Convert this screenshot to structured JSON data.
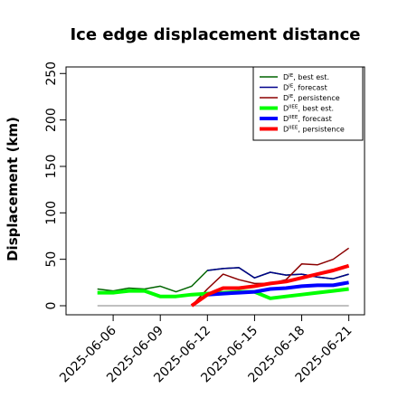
{
  "chart_data": {
    "type": "line",
    "title": "Ice edge displacement distance",
    "xlabel": "",
    "ylabel": "Displacement (km)",
    "ylim": [
      0,
      250
    ],
    "yticks": [
      0,
      50,
      100,
      150,
      200,
      250
    ],
    "x_dates": [
      "2025-06-05",
      "2025-06-06",
      "2025-06-07",
      "2025-06-08",
      "2025-06-09",
      "2025-06-10",
      "2025-06-11",
      "2025-06-12",
      "2025-06-13",
      "2025-06-14",
      "2025-06-15",
      "2025-06-16",
      "2025-06-17",
      "2025-06-18",
      "2025-06-19",
      "2025-06-20",
      "2025-06-21"
    ],
    "xlim": [
      "2025-06-03",
      "2025-06-22"
    ],
    "xticks": [
      {
        "label": "2025-06-06",
        "date": "2025-06-06",
        "color": "#000000"
      },
      {
        "label": "2025-06-09",
        "date": "2025-06-09",
        "color": "#000000"
      },
      {
        "label": "2025-06-12",
        "date": "2025-06-12",
        "color": "#228B22"
      },
      {
        "label": "2025-06-15",
        "date": "2025-06-15",
        "color": "#000000"
      },
      {
        "label": "2025-06-18",
        "date": "2025-06-18",
        "color": "#000000"
      },
      {
        "label": "2025-06-21",
        "date": "2025-06-21",
        "color": "#000000"
      }
    ],
    "series": [
      {
        "name": "D^IE, best est.",
        "legend_main": "D",
        "legend_sup": "IE",
        "legend_rest": ", best est.",
        "color": "#006400",
        "width": 1.5,
        "values": [
          18,
          16,
          19,
          18,
          21,
          15,
          21,
          38,
          40,
          41,
          30,
          36,
          33,
          34,
          31,
          29,
          34
        ]
      },
      {
        "name": "D^IE, forecast",
        "legend_main": "D",
        "legend_sup": "IE",
        "legend_rest": ", forecast",
        "color": "#00008B",
        "width": 1.5,
        "values": [
          null,
          null,
          null,
          null,
          null,
          null,
          null,
          38,
          40,
          41,
          30,
          36,
          33,
          34,
          31,
          29,
          34
        ]
      },
      {
        "name": "D^IE, persistence",
        "legend_main": "D",
        "legend_sup": "IE",
        "legend_rest": ", persistence",
        "color": "#8B0000",
        "width": 1.5,
        "values": [
          null,
          null,
          null,
          null,
          null,
          null,
          0,
          18,
          34,
          28,
          24,
          24,
          28,
          45,
          44,
          50,
          62
        ]
      },
      {
        "name": "D^IIEE, best est.",
        "legend_main": "D",
        "legend_sup": "IIEE",
        "legend_rest": ", best est.",
        "color": "#00FF00",
        "width": 4,
        "values": [
          14,
          14,
          16,
          16,
          10,
          10,
          12,
          13,
          14,
          15,
          15,
          8,
          10,
          12,
          14,
          16,
          18
        ]
      },
      {
        "name": "D^IIEE, forecast",
        "legend_main": "D",
        "legend_sup": "IIEE",
        "legend_rest": ", forecast",
        "color": "#0000FF",
        "width": 4,
        "values": [
          null,
          null,
          null,
          null,
          null,
          null,
          null,
          12,
          13,
          14,
          15,
          18,
          19,
          21,
          22,
          22,
          25
        ]
      },
      {
        "name": "D^IIEE, persistence",
        "legend_main": "D",
        "legend_sup": "IIEE",
        "legend_rest": ", persistence",
        "color": "#FF0000",
        "width": 4,
        "values": [
          null,
          null,
          null,
          null,
          null,
          null,
          0,
          12,
          19,
          19,
          21,
          24,
          26,
          30,
          34,
          38,
          43
        ]
      }
    ],
    "baseline": {
      "value": 0,
      "color": "#808080",
      "from": "2025-06-05",
      "to": "2025-06-21"
    },
    "grid": false,
    "legend_position": "top-right"
  }
}
